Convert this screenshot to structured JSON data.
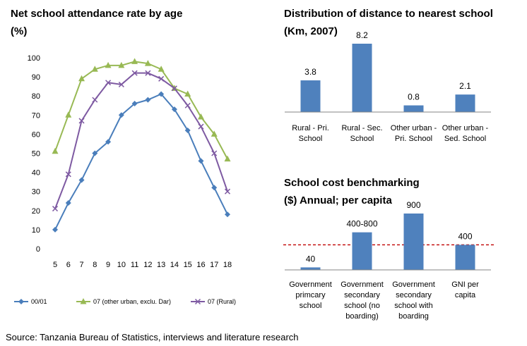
{
  "source_note": "Source: Tanzania Bureau of Statistics, interviews and literature research",
  "chart_data": [
    {
      "type": "line",
      "title_lines": [
        "Net school attendance rate by age",
        "(%)"
      ],
      "x": [
        5,
        6,
        7,
        8,
        9,
        10,
        11,
        12,
        13,
        14,
        15,
        16,
        17,
        18
      ],
      "ylim": [
        0,
        100
      ],
      "yticks": [
        0,
        10,
        20,
        30,
        40,
        50,
        60,
        70,
        80,
        90,
        100
      ],
      "grid": false,
      "legend_position": "bottom",
      "series": [
        {
          "name": "00/01",
          "color": "#4a7ebb",
          "marker": "diamond",
          "values": [
            10,
            24,
            36,
            50,
            56,
            70,
            76,
            78,
            81,
            73,
            62,
            46,
            32,
            18
          ]
        },
        {
          "name": "07 (other urban, exclu. Dar)",
          "color": "#98b954",
          "marker": "triangle",
          "values": [
            51,
            70,
            89,
            94,
            96,
            96,
            98,
            97,
            94,
            84,
            81,
            69,
            60,
            47
          ]
        },
        {
          "name": "07 (Rural)",
          "color": "#7e5aa2",
          "marker": "cross",
          "values": [
            21,
            39,
            67,
            78,
            87,
            86,
            92,
            92,
            89,
            84,
            75,
            64,
            50,
            30
          ]
        }
      ]
    },
    {
      "type": "bar",
      "title_lines": [
        "Distribution of distance to nearest school",
        "(Km, 2007)"
      ],
      "categories": [
        [
          "Rural - Pri.",
          "School"
        ],
        [
          "Rural - Sec.",
          "School"
        ],
        [
          "Other urban -",
          "Pri. School"
        ],
        [
          "Other urban -",
          "Sed. School"
        ]
      ],
      "values": [
        3.8,
        8.2,
        0.8,
        2.1
      ],
      "data_labels": [
        "3.8",
        "8.2",
        "0.8",
        "2.1"
      ],
      "bar_color": "#4f81bd",
      "ylim": [
        0,
        8.2
      ]
    },
    {
      "type": "bar",
      "title_lines": [
        "School cost benchmarking",
        "($) Annual; per capita"
      ],
      "categories": [
        [
          "Government",
          "primcary",
          "school"
        ],
        [
          "Government",
          "secondary",
          "school (no",
          "boarding)"
        ],
        [
          "Government",
          "secondary",
          "school with",
          "boarding"
        ],
        [
          "GNI per",
          "capita"
        ]
      ],
      "values": [
        40,
        600,
        900,
        400
      ],
      "data_labels": [
        "40",
        "400-800",
        "900",
        "400"
      ],
      "bar_color": "#4f81bd",
      "reference_line": {
        "value": 400,
        "color": "#c00000",
        "style": "dashed"
      },
      "ylim": [
        0,
        900
      ]
    }
  ]
}
